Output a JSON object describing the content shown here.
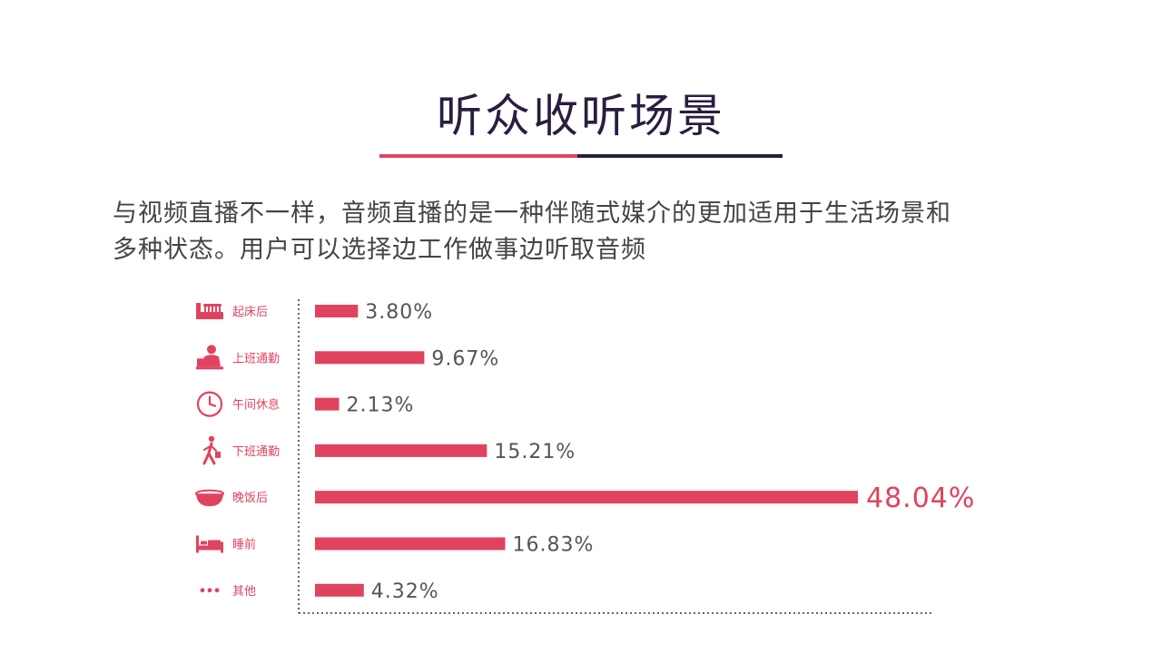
{
  "title": "听众收听场景",
  "description": {
    "line1": "与视频直播不一样，音频直播的是一种伴随式媒介的更加适用于生活场景和",
    "line2": "多种状态。用户可以选择边工作做事边听取音频"
  },
  "colors": {
    "accent": "#e0435e",
    "dark": "#2a1d3f",
    "text": "#555555"
  },
  "chart_data": {
    "type": "bar",
    "orientation": "horizontal",
    "categories": [
      "起床后",
      "上班通勤",
      "午间休息",
      "下班通勤",
      "晚饭后",
      "睡前",
      "其他"
    ],
    "values": [
      3.8,
      9.67,
      2.13,
      15.21,
      48.04,
      16.83,
      4.32
    ],
    "value_labels": [
      "3.80%",
      "9.67%",
      "2.13%",
      "15.21%",
      "48.04%",
      "16.83%",
      "4.32%"
    ],
    "icons": [
      "toothbrush-icon",
      "office-worker-icon",
      "clock-icon",
      "walking-person-icon",
      "bowl-icon",
      "bed-icon",
      "dots-icon"
    ],
    "highlight_index": 4,
    "xlim": [
      0,
      48.04
    ],
    "grid": false
  }
}
